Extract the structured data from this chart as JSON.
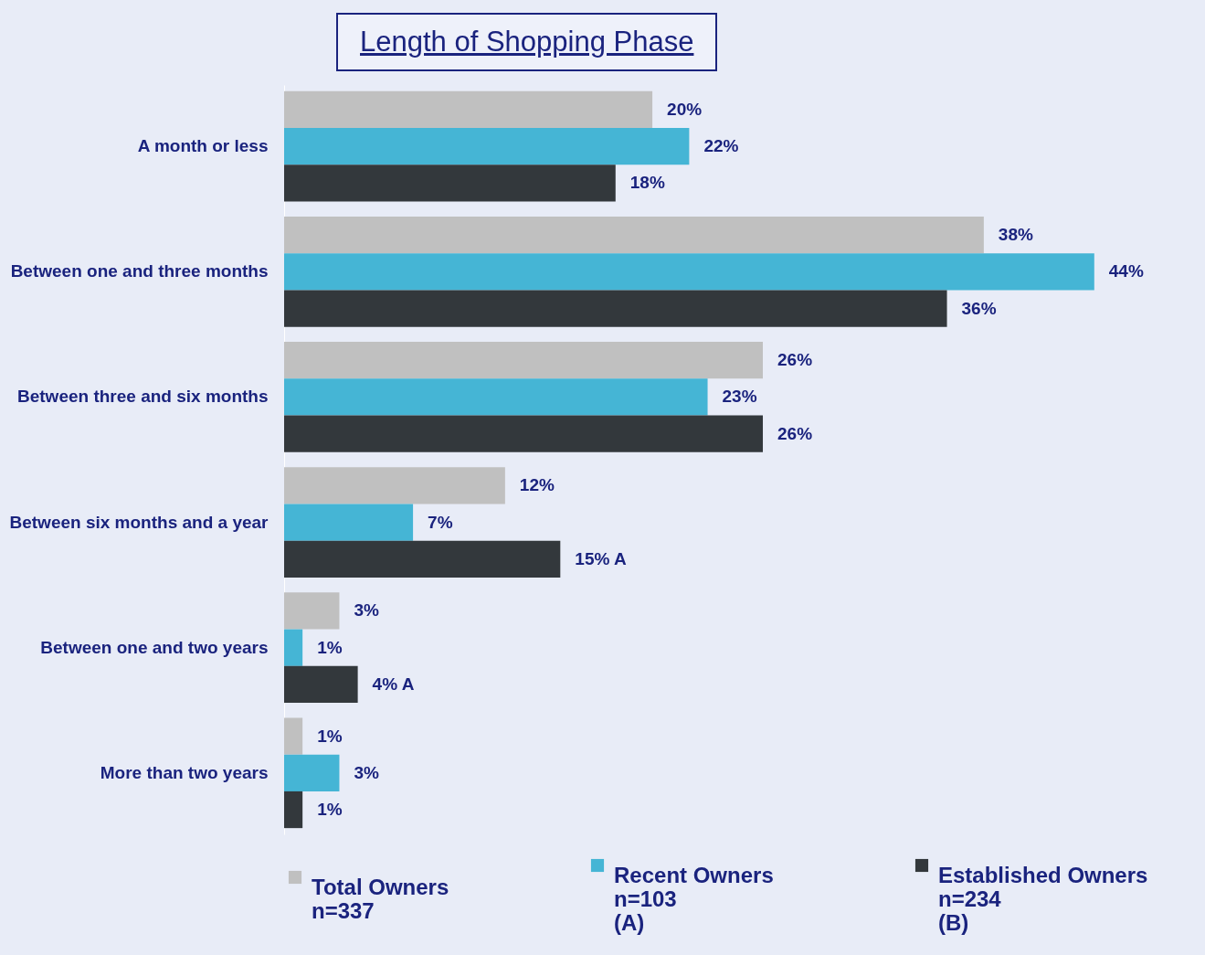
{
  "chart_data": {
    "type": "bar",
    "orientation": "horizontal",
    "title": "Length of Shopping Phase",
    "categories": [
      "A month or less",
      "Between one and three months",
      "Between three and six months",
      "Between six months and a year",
      "Between one and two years",
      "More than two years"
    ],
    "series": [
      {
        "name": "Total Owners\nn=337",
        "color": "#c0c0c0",
        "values": [
          20,
          38,
          26,
          12,
          3,
          1
        ],
        "value_labels": [
          "20%",
          "38%",
          "26%",
          "12%",
          "3%",
          "1%"
        ]
      },
      {
        "name": "Recent Owners\nn=103\n(A)",
        "color": "#45b5d5",
        "values": [
          22,
          44,
          23,
          7,
          1,
          3
        ],
        "value_labels": [
          "22%",
          "44%",
          "23%",
          "7%",
          "1%",
          "3%"
        ]
      },
      {
        "name": "Established Owners\nn=234\n(B)",
        "color": "#33383c",
        "values": [
          18,
          36,
          26,
          15,
          4,
          1
        ],
        "value_labels": [
          "18%",
          "36%",
          "26%",
          "15% A",
          "4% A",
          "1%"
        ]
      }
    ],
    "legend": "bottom"
  }
}
